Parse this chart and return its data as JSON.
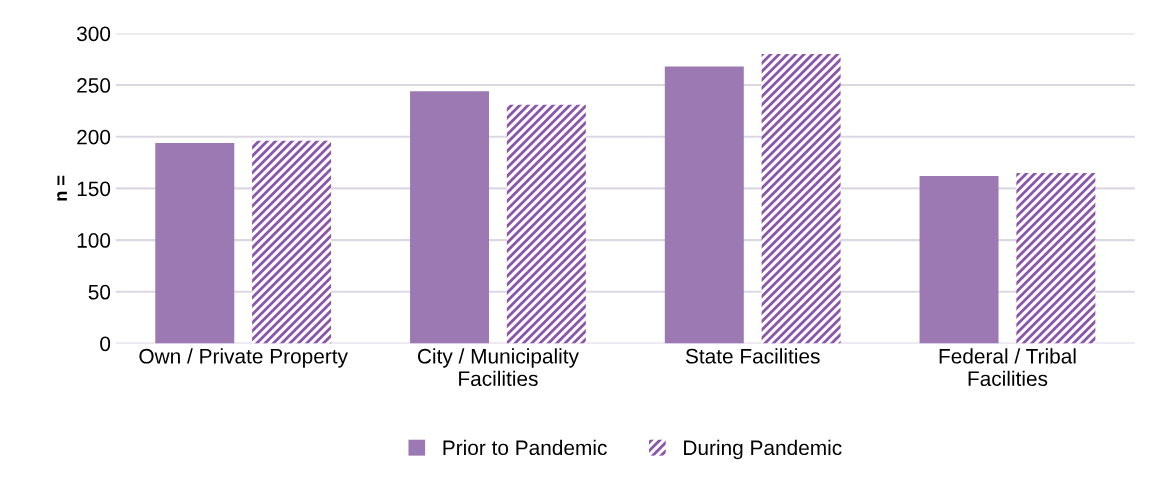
{
  "chart_data": {
    "type": "bar",
    "ylabel": "n =",
    "categories": [
      "Own / Private Property",
      "City / Municipality\nFacilities",
      "State Facilities",
      "Federal / Tribal\nFacilities"
    ],
    "series": [
      {
        "name": "Prior to Pandemic",
        "color": "#9d79b3",
        "values": [
          194,
          244,
          268,
          162
        ]
      },
      {
        "name": "During Pandemic",
        "color": "#8b55ab",
        "values": [
          196,
          231,
          280,
          165
        ]
      }
    ],
    "ylim": [
      0,
      300
    ],
    "yticks": [
      0,
      50,
      100,
      150,
      200,
      250,
      300
    ],
    "grid": "y",
    "legend": "bottom"
  }
}
